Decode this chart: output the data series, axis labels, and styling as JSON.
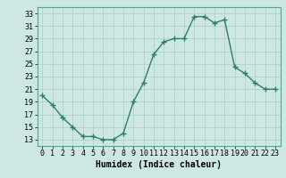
{
  "x": [
    0,
    1,
    2,
    3,
    4,
    5,
    6,
    7,
    8,
    9,
    10,
    11,
    12,
    13,
    14,
    15,
    16,
    17,
    18,
    19,
    20,
    21,
    22,
    23
  ],
  "y": [
    20.0,
    18.5,
    16.5,
    15.0,
    13.5,
    13.5,
    13.0,
    13.0,
    14.0,
    19.0,
    22.0,
    26.5,
    28.5,
    29.0,
    29.0,
    32.5,
    32.5,
    31.5,
    32.0,
    24.5,
    23.5,
    22.0,
    21.0,
    21.0
  ],
  "line_color": "#2e7d6e",
  "marker": "+",
  "marker_size": 4,
  "bg_color": "#cde8e2",
  "grid_color": "#aacfc8",
  "xlabel": "Humidex (Indice chaleur)",
  "xlim": [
    -0.5,
    23.5
  ],
  "ylim": [
    12,
    34
  ],
  "yticks": [
    13,
    15,
    17,
    19,
    21,
    23,
    25,
    27,
    29,
    31,
    33
  ],
  "xticks": [
    0,
    1,
    2,
    3,
    4,
    5,
    6,
    7,
    8,
    9,
    10,
    11,
    12,
    13,
    14,
    15,
    16,
    17,
    18,
    19,
    20,
    21,
    22,
    23
  ],
  "xlabel_fontsize": 7,
  "tick_fontsize": 6,
  "line_width": 1.0
}
